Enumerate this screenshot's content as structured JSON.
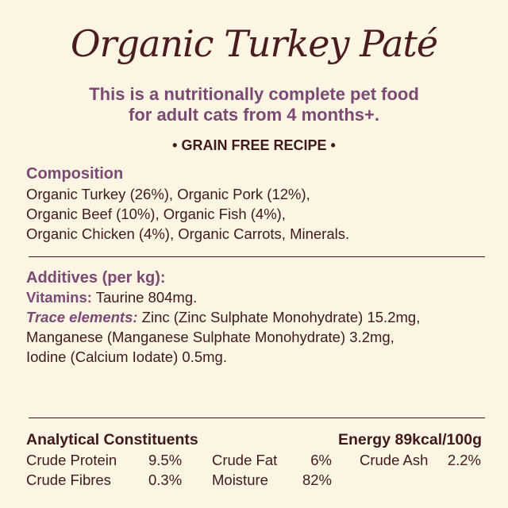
{
  "title": "Organic Turkey Paté",
  "subtitle": [
    "This is a nutritionally complete pet food",
    "for adult cats from 4 months+."
  ],
  "badge": "• GRAIN FREE RECIPE •",
  "composition": {
    "heading": "Composition",
    "lines": [
      "Organic Turkey (26%), Organic Pork (12%),",
      "Organic Beef (10%), Organic Fish (4%),",
      "Organic Chicken (4%), Organic Carrots, Minerals."
    ]
  },
  "additives": {
    "heading": "Additives (per kg):",
    "vitamins_label": "Vitamins:",
    "vitamins_text": " Taurine 804mg.",
    "trace_label": "Trace elements:",
    "trace_text": " Zinc (Zinc Sulphate Monohydrate) 15.2mg,",
    "lines": [
      "Manganese (Manganese Sulphate Monohydrate) 3.2mg,",
      "Iodine (Calcium Iodate) 0.5mg."
    ]
  },
  "analytical": {
    "heading": "Analytical Constituents",
    "energy": "Energy 89kcal/100g",
    "rows": [
      [
        {
          "label": "Crude Protein",
          "value": "9.5%"
        },
        {
          "label": "Crude Fat",
          "value": "6%"
        },
        {
          "label": "Crude Ash",
          "value": "2.2%"
        }
      ],
      [
        {
          "label": "Crude Fibres",
          "value": "0.3%"
        },
        {
          "label": "Moisture",
          "value": "82%"
        }
      ]
    ]
  },
  "colors": {
    "background": "#fdf5e3",
    "text": "#3e1a1c",
    "accent": "#7b4a73"
  }
}
